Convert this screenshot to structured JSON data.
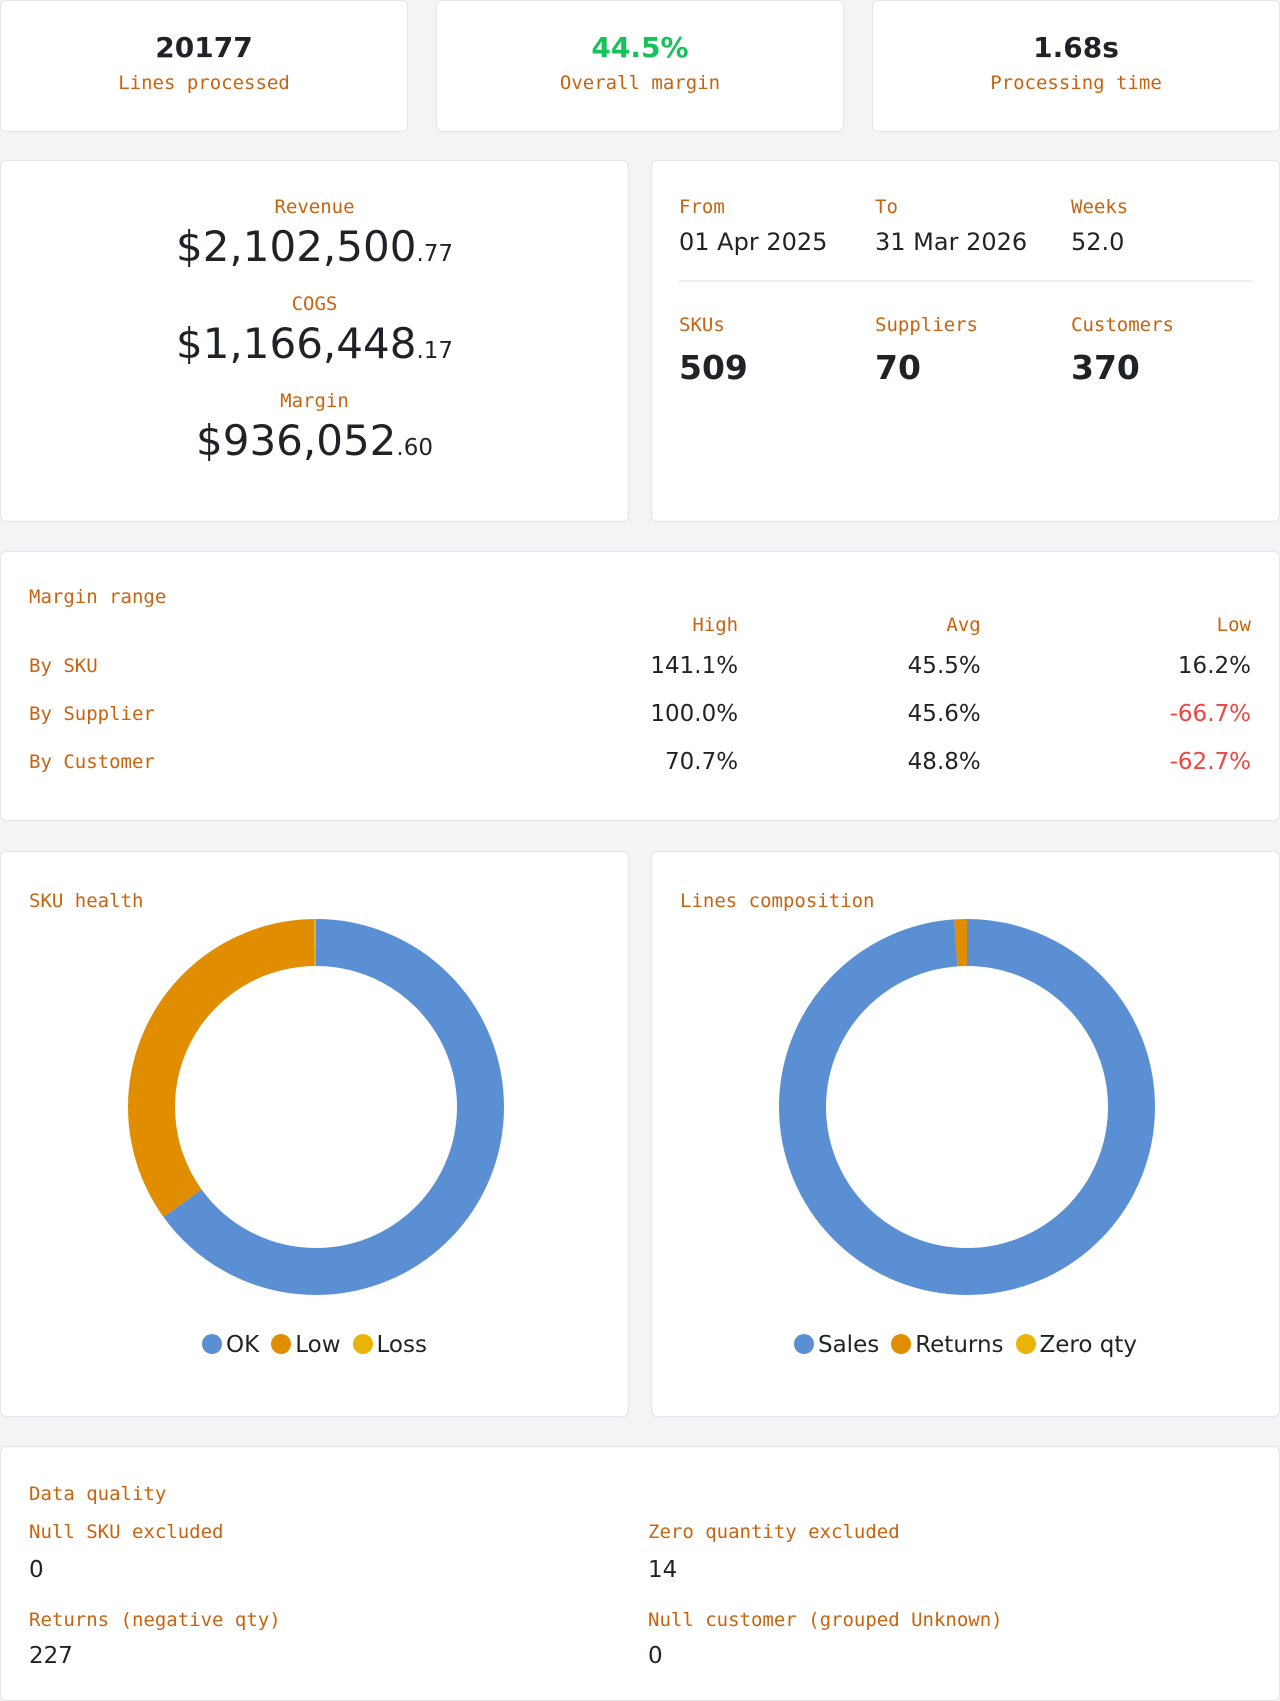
{
  "kpis": [
    {
      "value": "20177",
      "label": "Lines processed",
      "color": "#1f2328"
    },
    {
      "value": "44.5%",
      "label": "Overall margin",
      "color": "#16c25a"
    },
    {
      "value": "1.68s",
      "label": "Processing time",
      "color": "#1f2328"
    }
  ],
  "financials": [
    {
      "label": "Revenue",
      "whole": "$2,102,500",
      "cents": ".77"
    },
    {
      "label": "COGS",
      "whole": "$1,166,448",
      "cents": ".17"
    },
    {
      "label": "Margin",
      "whole": "$936,052",
      "cents": ".60"
    }
  ],
  "period": {
    "from_label": "From",
    "from": "01 Apr 2025",
    "to_label": "To",
    "to": "31 Mar 2026",
    "weeks_label": "Weeks",
    "weeks": "52.0"
  },
  "counts": {
    "skus_label": "SKUs",
    "skus": "509",
    "suppliers_label": "Suppliers",
    "suppliers": "70",
    "customers_label": "Customers",
    "customers": "370"
  },
  "margin_range": {
    "title": "Margin range",
    "headers": [
      "High",
      "Avg",
      "Low"
    ],
    "rows": [
      {
        "label": "By SKU",
        "high": "141.1%",
        "avg": "45.5%",
        "low": "16.2%",
        "low_negative": false
      },
      {
        "label": "By Supplier",
        "high": "100.0%",
        "avg": "45.6%",
        "low": "-66.7%",
        "low_negative": true
      },
      {
        "label": "By Customer",
        "high": "70.7%",
        "avg": "48.8%",
        "low": "-62.7%",
        "low_negative": true
      }
    ]
  },
  "chart_data": [
    {
      "type": "pie",
      "title": "SKU health",
      "donut": true,
      "categories": [
        "OK",
        "Low",
        "Loss"
      ],
      "values": [
        331,
        177,
        1
      ],
      "colors": [
        "#5b8fd4",
        "#e08e00",
        "#eab308"
      ],
      "legend": "bottom"
    },
    {
      "type": "pie",
      "title": "Lines composition",
      "donut": true,
      "categories": [
        "Sales",
        "Returns",
        "Zero qty"
      ],
      "values": [
        19950,
        227,
        0
      ],
      "colors": [
        "#5b8fd4",
        "#e08e00",
        "#eab308"
      ],
      "legend": "bottom"
    }
  ],
  "data_quality": {
    "title": "Data quality",
    "items": [
      {
        "label": "Null SKU excluded",
        "value": "0"
      },
      {
        "label": "Zero quantity excluded",
        "value": "14"
      },
      {
        "label": "Returns (negative qty)",
        "value": "227"
      },
      {
        "label": "Null customer (grouped Unknown)",
        "value": "0"
      }
    ]
  }
}
